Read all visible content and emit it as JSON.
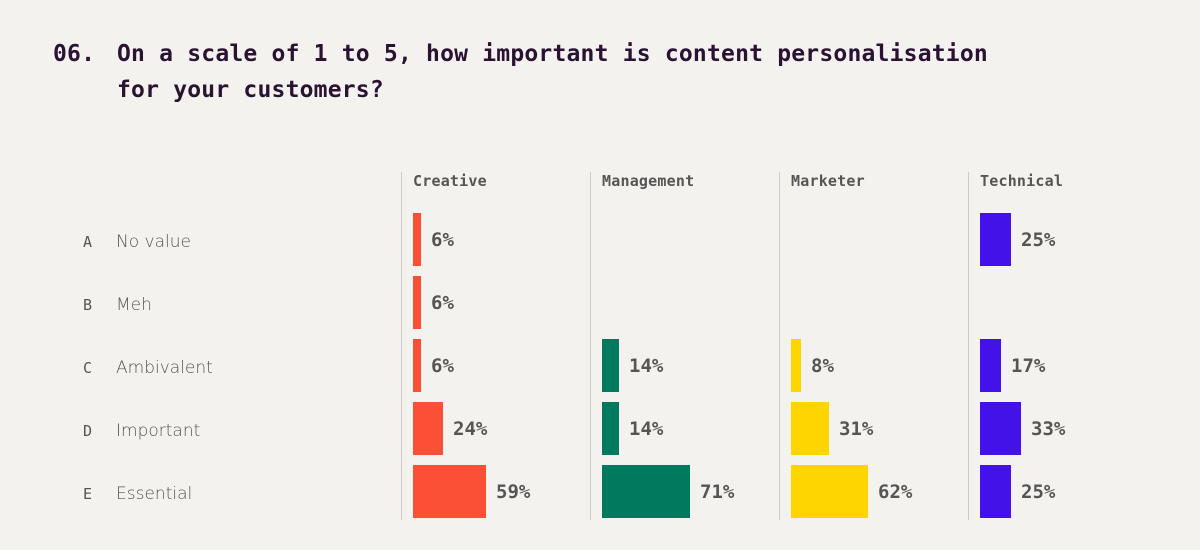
{
  "title": {
    "number": "06.",
    "line1": "On a scale of 1 to 5, how important is content personalisation",
    "line2": "for your customers?"
  },
  "rows": [
    {
      "letter": "A",
      "label": "No value"
    },
    {
      "letter": "B",
      "label": "Meh"
    },
    {
      "letter": "C",
      "label": "Ambivalent"
    },
    {
      "letter": "D",
      "label": "Important"
    },
    {
      "letter": "E",
      "label": "Essential"
    }
  ],
  "columns": [
    {
      "name": "Creative",
      "color": "#fc5036",
      "values": [
        "6%",
        "6%",
        "6%",
        "24%",
        "59%"
      ]
    },
    {
      "name": "Management",
      "color": "#007a5e",
      "values": [
        null,
        null,
        "14%",
        "14%",
        "71%"
      ]
    },
    {
      "name": "Marketer",
      "color": "#ffd500",
      "values": [
        null,
        null,
        "8%",
        "31%",
        "62%"
      ]
    },
    {
      "name": "Technical",
      "color": "#4212e8",
      "values": [
        "25%",
        null,
        "17%",
        "33%",
        "25%"
      ]
    }
  ],
  "chart_data": {
    "type": "bar",
    "title": "06. On a scale of 1 to 5, how important is content personalisation for your customers?",
    "orientation": "horizontal",
    "categories": [
      "A No value",
      "B Meh",
      "C Ambivalent",
      "D Important",
      "E Essential"
    ],
    "series": [
      {
        "name": "Creative",
        "color": "#fc5036",
        "values": [
          6,
          6,
          6,
          24,
          59
        ]
      },
      {
        "name": "Management",
        "color": "#007a5e",
        "values": [
          0,
          0,
          14,
          14,
          71
        ]
      },
      {
        "name": "Marketer",
        "color": "#ffd500",
        "values": [
          0,
          0,
          8,
          31,
          62
        ]
      },
      {
        "name": "Technical",
        "color": "#4212e8",
        "values": [
          25,
          0,
          17,
          33,
          25
        ]
      }
    ],
    "xlabel": "",
    "ylabel": "",
    "unit": "%",
    "layout": "small multiples, one panel per audience segment",
    "grid": false,
    "legend": "column headers"
  }
}
